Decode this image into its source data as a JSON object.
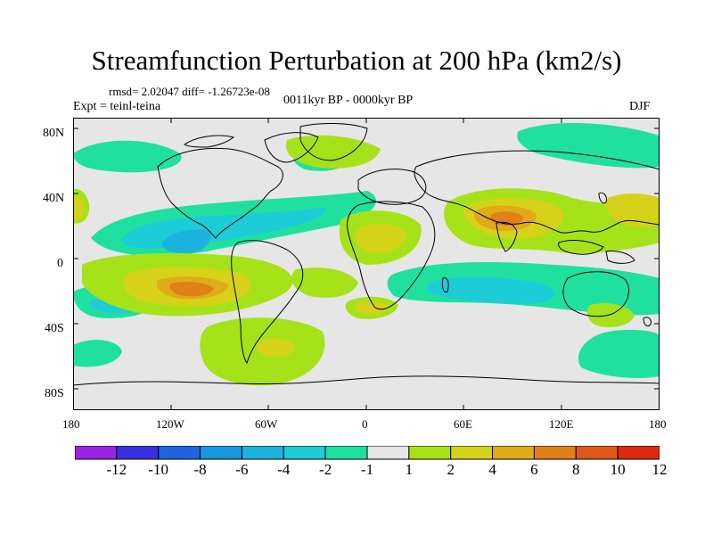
{
  "title": "Streamfunction Perturbation at 200 hPa (km2/s)",
  "stats": "rmsd= 2.02047 diff= -1.26723e-08",
  "expt": "Expt = teinl-teina",
  "period": "0011kyr BP - 0000kyr BP",
  "season": "DJF",
  "lat_labels": [
    "80N",
    "40N",
    "0",
    "40S",
    "80S"
  ],
  "lon_labels": [
    "180",
    "120W",
    "60W",
    "0",
    "60E",
    "120E",
    "180"
  ],
  "colorbar": {
    "labels": [
      "-12",
      "-10",
      "-8",
      "-6",
      "-4",
      "-2",
      "-1",
      "1",
      "2",
      "4",
      "6",
      "8",
      "10",
      "12"
    ],
    "colors": [
      "#9a22e0",
      "#3a30e0",
      "#1e64e0",
      "#1996e0",
      "#1cb2e0",
      "#1cccd6",
      "#20e0a0",
      "#e6e6e6",
      "#a6e21a",
      "#d6d21a",
      "#e0aa18",
      "#e08018",
      "#e05818",
      "#e02a10"
    ]
  },
  "map_colors": {
    "neutral": "#e6e6e6",
    "pos1": "#a6e21a",
    "pos2": "#d6d21a",
    "pos3": "#e0aa18",
    "pos4": "#e08018",
    "neg1": "#20e0a0",
    "neg2": "#1cccd6",
    "neg3": "#1cb2e0",
    "neg4": "#1996e0"
  }
}
